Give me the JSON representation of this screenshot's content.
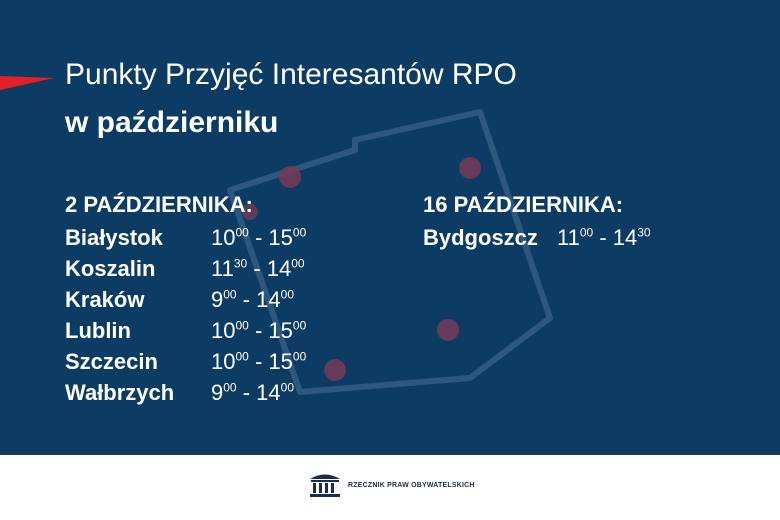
{
  "title": {
    "line1": "Punkty Przyjęć Interesantów RPO",
    "line2": "w październiku"
  },
  "left_column": {
    "heading": "2 PAŹDZIERNIKA:",
    "rows": [
      {
        "city": "Białystok",
        "from_h": "10",
        "from_m": "00",
        "to_h": "15",
        "to_m": "00"
      },
      {
        "city": "Koszalin",
        "from_h": "11",
        "from_m": "30",
        "to_h": "14",
        "to_m": "00"
      },
      {
        "city": "Kraków",
        "from_h": "9",
        "from_m": "00",
        "to_h": "14",
        "to_m": "00"
      },
      {
        "city": "Lublin",
        "from_h": "10",
        "from_m": "00",
        "to_h": "15",
        "to_m": "00"
      },
      {
        "city": "Szczecin",
        "from_h": "10",
        "from_m": "00",
        "to_h": "15",
        "to_m": "00"
      },
      {
        "city": "Wałbrzych",
        "from_h": "9",
        "from_m": "00",
        "to_h": "14",
        "to_m": "00"
      }
    ]
  },
  "right_column": {
    "heading": "16 PAŹDZIERNIKA:",
    "rows": [
      {
        "city": "Bydgoszcz",
        "from_h": "11",
        "from_m": "00",
        "to_h": "14",
        "to_m": "30"
      }
    ]
  },
  "separator": " - ",
  "footer": {
    "logo_text": "RZECZNIK PRAW OBYWATELSKICH",
    "logo_icon": "building-columns-icon"
  },
  "colors": {
    "background": "#0c3c64",
    "accent": "#e3202a",
    "text": "#ffffff",
    "logo": "#1b2a55"
  }
}
